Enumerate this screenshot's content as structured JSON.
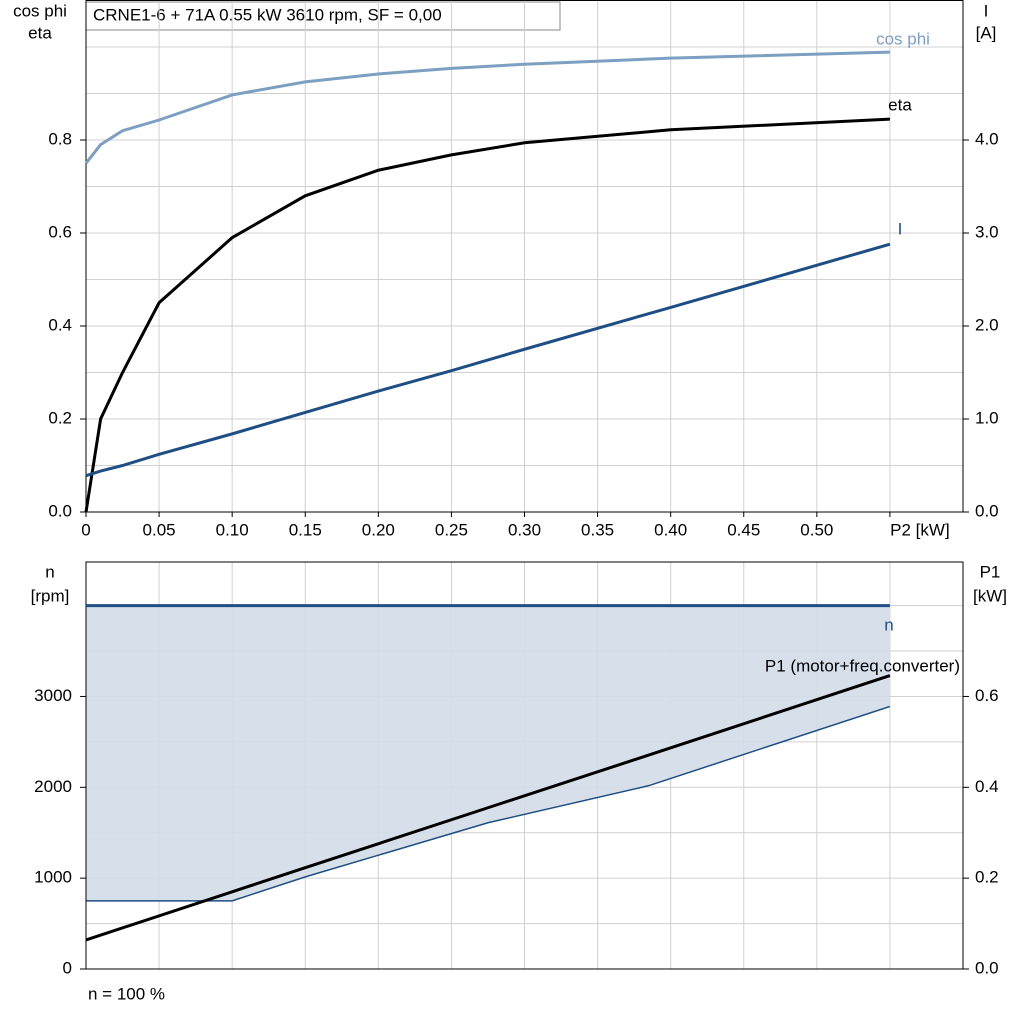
{
  "chart_data": [
    {
      "type": "line",
      "title": "CRNE1-6 + 71A   0.55 kW   3610 rpm, SF = 0,00",
      "ylabel": [
        "cos phi",
        "eta"
      ],
      "y2label": [
        "I",
        "[A]"
      ],
      "x": [
        0,
        0.01,
        0.025,
        0.05,
        0.1,
        0.15,
        0.2,
        0.25,
        0.3,
        0.4,
        0.55
      ],
      "xlim": [
        0,
        0.6
      ],
      "xticks": [
        0,
        0.05,
        {
          "value": 0.1,
          "label": "0.10"
        },
        0.15,
        {
          "value": 0.2,
          "label": "0.20"
        },
        0.25,
        {
          "value": 0.3,
          "label": "0.30"
        },
        0.35,
        {
          "value": 0.4,
          "label": "0.40"
        },
        0.45,
        {
          "value": 0.5,
          "label": "0.50"
        },
        {
          "value": 0.55,
          "label": "P2 [kW]"
        }
      ],
      "ylim": [
        0,
        1.1
      ],
      "yticks": [
        {
          "value": 0,
          "label": "0.0"
        },
        0.2,
        0.4,
        0.6,
        0.8
      ],
      "ygrid": [
        0.1,
        0.2,
        0.3,
        0.4,
        0.5,
        0.6,
        0.7,
        0.8,
        0.9,
        1.0
      ],
      "y2lim": [
        0,
        5.5
      ],
      "y2ticks": [
        {
          "value": 0,
          "label": "0.0"
        },
        {
          "value": 1,
          "label": "1.0"
        },
        {
          "value": 2,
          "label": "2.0"
        },
        {
          "value": 3,
          "label": "3.0"
        },
        {
          "value": 4,
          "label": "4.0"
        }
      ],
      "grid": true,
      "series": [
        {
          "name": "cos phi",
          "color": "#7c9fc2",
          "values": [
            0.75,
            0.79,
            0.82,
            0.843,
            0.897,
            0.925,
            0.942,
            0.954,
            0.963,
            0.976,
            0.989
          ]
        },
        {
          "name": "eta",
          "color": "#000000",
          "values": [
            0,
            0.2,
            0.3,
            0.45,
            0.59,
            0.68,
            0.735,
            0.768,
            0.794,
            0.822,
            0.845
          ]
        },
        {
          "name": "I",
          "color": "#1f4e84",
          "axis": "y2",
          "values": [
            0.39,
            0.44,
            0.5,
            0.62,
            0.84,
            1.07,
            1.3,
            1.52,
            1.75,
            2.2,
            2.88
          ]
        }
      ]
    },
    {
      "type": "line",
      "ylabel": [
        "n",
        "[rpm]"
      ],
      "y2label": [
        "P1",
        "[kW]"
      ],
      "note": "n = 100 %",
      "x": [
        0,
        0.1,
        0.15,
        0.275,
        0.385,
        0.55
      ],
      "xlim": [
        0,
        0.6
      ],
      "xgrid": [
        0,
        0.05,
        0.1,
        0.15,
        0.2,
        0.25,
        0.3,
        0.35,
        0.4,
        0.45,
        0.5,
        0.55
      ],
      "ylim": [
        0,
        4480
      ],
      "yticks": [
        0,
        1000,
        2000,
        3000
      ],
      "ygrid": [
        500,
        1000,
        1500,
        2000,
        2500,
        3000,
        3500,
        4000
      ],
      "y2lim": [
        0,
        0.896
      ],
      "y2ticks": [
        {
          "value": 0,
          "label": "0.0"
        },
        0.2,
        0.4,
        0.6
      ],
      "grid": true,
      "series": [
        {
          "name": "n",
          "color": "#1f4e84",
          "fill": "#d3dde8",
          "values": [
            4000,
            4000,
            4000,
            4000,
            4000,
            4000
          ],
          "lower": [
            750,
            750,
            1014,
            1610,
            2018,
            2890
          ]
        },
        {
          "name": "P1 (motor+freq.converter)",
          "color": "#000000",
          "axis": "y2",
          "values": [
            0.064,
            0.17,
            0.223,
            0.355,
            0.471,
            0.646
          ]
        }
      ]
    }
  ]
}
